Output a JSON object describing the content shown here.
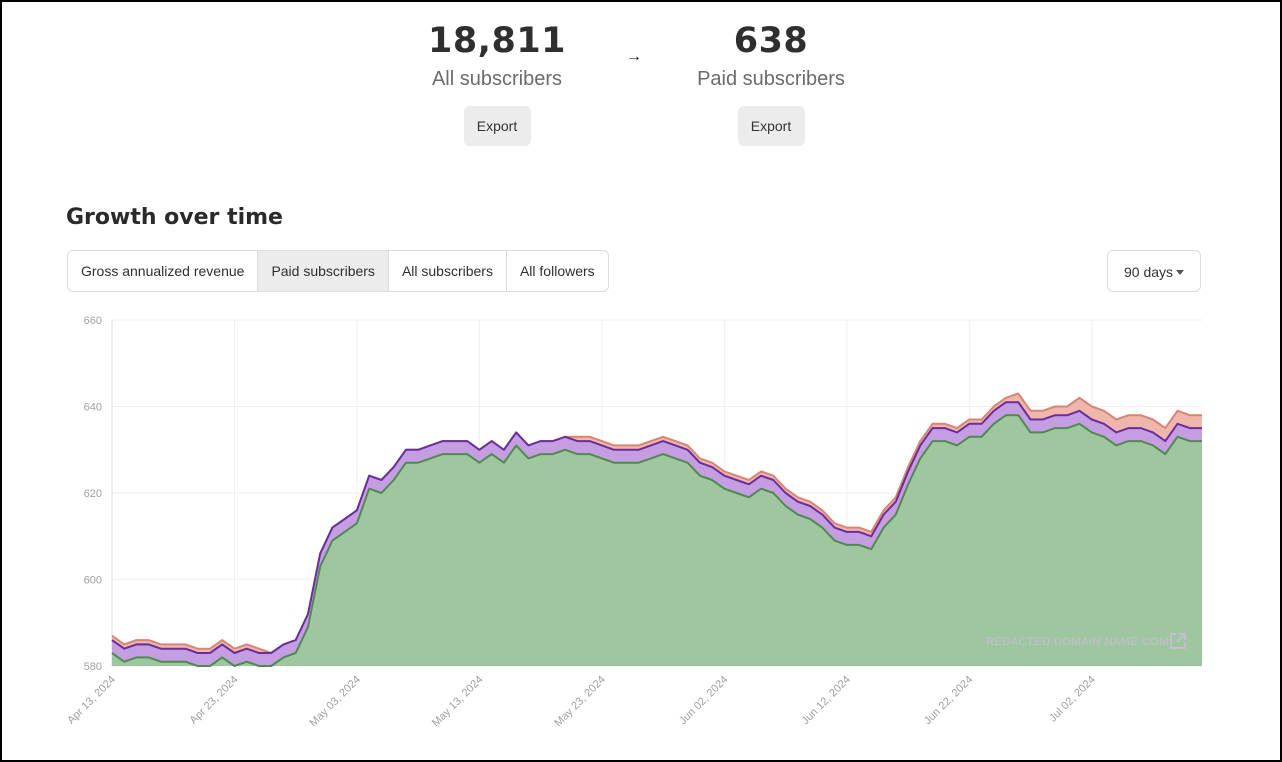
{
  "stats": {
    "all_subscribers": {
      "value": "18,811",
      "label": "All subscribers",
      "export_label": "Export"
    },
    "paid_subscribers": {
      "value": "638",
      "label": "Paid subscribers",
      "export_label": "Export"
    },
    "arrow": "→"
  },
  "growth": {
    "title": "Growth over time",
    "tabs": [
      {
        "label": "Gross annualized revenue",
        "active": false
      },
      {
        "label": "Paid subscribers",
        "active": true
      },
      {
        "label": "All subscribers",
        "active": false
      },
      {
        "label": "All followers",
        "active": false
      }
    ],
    "range": {
      "selected": "90 days"
    }
  },
  "watermark": {
    "text": "REDACTED DOMAIN NAME.COM",
    "icon": "external-link-icon"
  },
  "chart_data": {
    "type": "area",
    "stacked": true,
    "title": "",
    "xlabel": "",
    "ylabel": "",
    "ylim": [
      580,
      660
    ],
    "yticks": [
      580,
      600,
      620,
      640,
      660
    ],
    "xticks": [
      "Apr 13, 2024",
      "Apr 23, 2024",
      "May 03, 2024",
      "May 13, 2024",
      "May 23, 2024",
      "Jun 02, 2024",
      "Jun 12, 2024",
      "Jun 22, 2024",
      "Jul 02, 2024"
    ],
    "x_start": "Apr 13, 2024",
    "x_end": "Jul 11, 2024",
    "grid": true,
    "colors": {
      "green": "#9fc79f",
      "green_line": "#4f8a4f",
      "purple": "#c49ee0",
      "purple_line": "#6b2d9c",
      "red": "#efb7ac",
      "red_line": "#d98474"
    },
    "series": [
      {
        "color": "green",
        "values": [
          583,
          581,
          582,
          582,
          581,
          581,
          581,
          580,
          580,
          582,
          580,
          581,
          580,
          580,
          582,
          583,
          589,
          603,
          609,
          611,
          613,
          621,
          620,
          623,
          627,
          627,
          628,
          629,
          629,
          629,
          627,
          629,
          627,
          631,
          628,
          629,
          629,
          630,
          629,
          629,
          628,
          627,
          627,
          627,
          628,
          629,
          628,
          627,
          624,
          623,
          621,
          620,
          619,
          621,
          620,
          617,
          615,
          614,
          612,
          609,
          608,
          608,
          607,
          612,
          615,
          622,
          628,
          632,
          632,
          631,
          633,
          633,
          636,
          638,
          638,
          634,
          634,
          635,
          635,
          636,
          634,
          633,
          631,
          632,
          632,
          631,
          629,
          633,
          632,
          632
        ]
      },
      {
        "color": "purple",
        "values": [
          586,
          584,
          585,
          585,
          584,
          584,
          584,
          583,
          583,
          585,
          583,
          584,
          583,
          583,
          585,
          586,
          592,
          606,
          612,
          614,
          616,
          624,
          623,
          626,
          630,
          630,
          631,
          632,
          632,
          632,
          630,
          632,
          630,
          634,
          631,
          632,
          632,
          633,
          632,
          632,
          631,
          630,
          630,
          630,
          631,
          632,
          631,
          630,
          627,
          626,
          624,
          623,
          622,
          624,
          623,
          620,
          618,
          617,
          615,
          612,
          611,
          611,
          610,
          615,
          618,
          625,
          631,
          635,
          635,
          634,
          636,
          636,
          639,
          641,
          641,
          637,
          637,
          638,
          638,
          639,
          637,
          636,
          634,
          635,
          635,
          634,
          632,
          636,
          635,
          635
        ]
      },
      {
        "color": "red",
        "values": [
          587,
          585,
          586,
          586,
          585,
          585,
          585,
          584,
          584,
          586,
          584,
          585,
          584,
          583,
          585,
          586,
          592,
          606,
          612,
          614,
          616,
          624,
          623,
          626,
          630,
          630,
          631,
          632,
          632,
          632,
          630,
          632,
          630,
          634,
          631,
          632,
          632,
          633,
          633,
          633,
          632,
          631,
          631,
          631,
          632,
          633,
          632,
          631,
          628,
          627,
          625,
          624,
          623,
          625,
          624,
          621,
          619,
          618,
          616,
          613,
          612,
          612,
          611,
          616,
          619,
          626,
          632,
          636,
          636,
          635,
          637,
          637,
          640,
          642,
          643,
          639,
          639,
          640,
          640,
          642,
          640,
          639,
          637,
          638,
          638,
          637,
          635,
          639,
          638,
          638
        ]
      }
    ]
  }
}
